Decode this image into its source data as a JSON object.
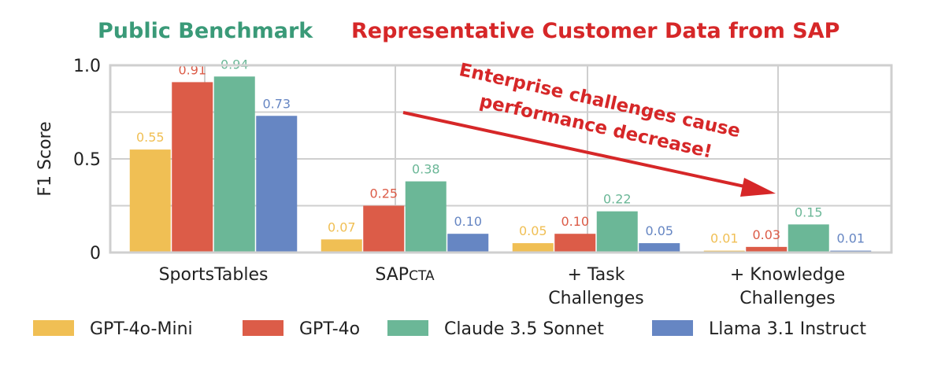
{
  "chart_data": {
    "type": "bar",
    "titles": [
      {
        "text": "Public Benchmark",
        "color": "#3a9a78"
      },
      {
        "text": "Representative Customer Data from SAP",
        "color": "#d62728"
      }
    ],
    "ylabel": "F1 Score",
    "ylim": [
      0,
      1.0
    ],
    "yticks": [
      {
        "value": 0,
        "label": "0"
      },
      {
        "value": 0.5,
        "label": "0.5"
      },
      {
        "value": 1.0,
        "label": "1.0"
      }
    ],
    "grid": true,
    "categories": [
      {
        "lines": [
          "SportsTables"
        ]
      },
      {
        "lines": [
          "SAPcta"
        ],
        "smallcaps": true,
        "main": "SAP",
        "sc": "CTA"
      },
      {
        "lines": [
          "+ Task",
          "Challenges"
        ]
      },
      {
        "lines": [
          "+ Knowledge",
          "Challenges"
        ]
      }
    ],
    "series": [
      {
        "name": "GPT-4o-Mini",
        "color": "#f0bf54",
        "values": [
          0.55,
          0.07,
          0.05,
          0.01
        ],
        "labels": [
          "0.55",
          "0.07",
          "0.05",
          "0.01"
        ]
      },
      {
        "name": "GPT-4o",
        "color": "#dc5c48",
        "values": [
          0.91,
          0.25,
          0.1,
          0.03
        ],
        "labels": [
          "0.91",
          "0.25",
          "0.10",
          "0.03"
        ]
      },
      {
        "name": "Claude 3.5 Sonnet",
        "color": "#6bb797",
        "values": [
          0.94,
          0.38,
          0.22,
          0.15
        ],
        "labels": [
          "0.94",
          "0.38",
          "0.22",
          "0.15"
        ]
      },
      {
        "name": "Llama 3.1 Instruct",
        "color": "#6686c3",
        "values": [
          0.73,
          0.1,
          0.05,
          0.01
        ],
        "labels": [
          "0.73",
          "0.10",
          "0.05",
          "0.01"
        ]
      }
    ],
    "annotation": {
      "lines": [
        "Enterprise challenges cause",
        "performance decrease!"
      ],
      "color": "#d62728"
    },
    "legend_position": "bottom"
  }
}
